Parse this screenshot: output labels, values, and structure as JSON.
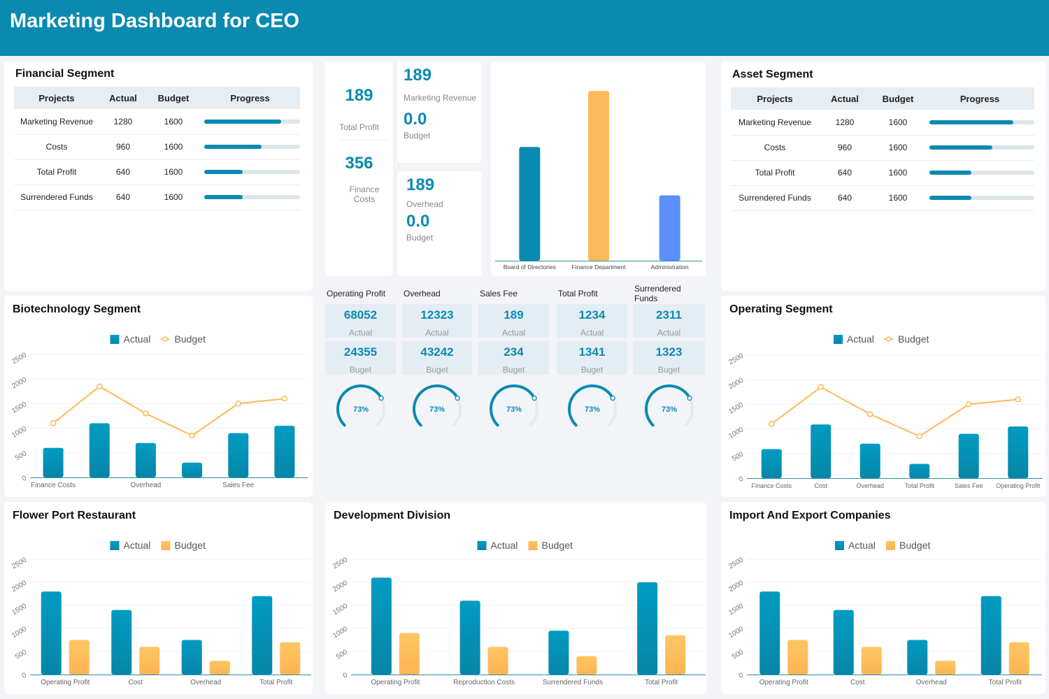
{
  "header": {
    "title": "Marketing Dashboard for CEO"
  },
  "colors": {
    "accent": "#0a8ab1",
    "budget": "#fdb85a",
    "admin": "#5b8ff9",
    "track": "#e1ecf2"
  },
  "financial": {
    "title": "Financial Segment",
    "columns": [
      "Projects",
      "Actual",
      "Budget",
      "Progress"
    ],
    "rows": [
      {
        "project": "Marketing Revenue",
        "actual": "1280",
        "budget": "1600",
        "progress": 80
      },
      {
        "project": "Costs",
        "actual": "960",
        "budget": "1600",
        "progress": 60
      },
      {
        "project": "Total Profit",
        "actual": "640",
        "budget": "1600",
        "progress": 40
      },
      {
        "project": "Surrendered Funds",
        "actual": "640",
        "budget": "1600",
        "progress": 40
      }
    ]
  },
  "asset": {
    "title": "Asset Segment",
    "columns": [
      "Projects",
      "Actual",
      "Budget",
      "Progress"
    ],
    "rows": [
      {
        "project": "Marketing Revenue",
        "actual": "1280",
        "budget": "1600",
        "progress": 80
      },
      {
        "project": "Costs",
        "actual": "960",
        "budget": "1600",
        "progress": 60
      },
      {
        "project": "Total Profit",
        "actual": "640",
        "budget": "1600",
        "progress": 40
      },
      {
        "project": "Surrendered Funds",
        "actual": "640",
        "budget": "1600",
        "progress": 40
      }
    ]
  },
  "kpi_left": {
    "v1": "189",
    "l1": "Total Profit",
    "v2": "356",
    "l2": "Finance Costs"
  },
  "kpi_mid_top": {
    "v1": "189",
    "l1": "Marketing Revenue",
    "v2": "0.0",
    "l2": "Budget"
  },
  "kpi_mid_bottom": {
    "v1": "189",
    "l1": "Overhead",
    "v2": "0.0",
    "l2": "Budget"
  },
  "metrics": [
    {
      "label": "Operating Profit",
      "actual": "68052",
      "actual_label": "Actual",
      "budget": "24355",
      "budget_label": "Buget",
      "gauge": "73%",
      "gauge_value": 73
    },
    {
      "label": "Overhead",
      "actual": "12323",
      "actual_label": "Actual",
      "budget": "43242",
      "budget_label": "Buget",
      "gauge": "73%",
      "gauge_value": 73
    },
    {
      "label": "Sales Fee",
      "actual": "189",
      "actual_label": "Actual",
      "budget": "234",
      "budget_label": "Buget",
      "gauge": "73%",
      "gauge_value": 73
    },
    {
      "label": "Total Profit",
      "actual": "1234",
      "actual_label": "Actual",
      "budget": "1341",
      "budget_label": "Buget",
      "gauge": "73%",
      "gauge_value": 73
    },
    {
      "label": "Surrendered Funds",
      "actual": "2311",
      "actual_label": "Actual",
      "budget": "1323",
      "budget_label": "Buget",
      "gauge": "73%",
      "gauge_value": 73
    }
  ],
  "chart_data": [
    {
      "id": "dept",
      "type": "bar",
      "categories": [
        "Board of Directories",
        "Finance Department",
        "Administration"
      ],
      "values": [
        670,
        1000,
        385
      ],
      "colors": [
        "#0a8ab1",
        "#fdb85a",
        "#5b8ff9"
      ],
      "ylim": [
        0,
        1050
      ],
      "grid": false
    },
    {
      "id": "biotech",
      "title": "Biotechnology Segment",
      "type": "bar+line",
      "categories": [
        "Finance Costs",
        "",
        "Overhead",
        "",
        "Sales Fee",
        ""
      ],
      "series": [
        {
          "name": "Actual",
          "type": "bar",
          "values": [
            600,
            1100,
            700,
            300,
            900,
            1050
          ]
        },
        {
          "name": "Budget",
          "type": "line",
          "values": [
            1100,
            1850,
            1300,
            850,
            1500,
            1600
          ]
        }
      ],
      "ylim": [
        0,
        2500
      ],
      "yticks": [
        "0",
        "500",
        "1000",
        "1500",
        "2000",
        "2500"
      ],
      "legend": "top-center",
      "grid": true
    },
    {
      "id": "operating",
      "title": "Operating Segment",
      "type": "bar+line",
      "categories": [
        "Finance Costs",
        "Cost",
        "Overhead",
        "Total Profit",
        "Sales Fee",
        "Operating Profit"
      ],
      "series": [
        {
          "name": "Actual",
          "type": "bar",
          "values": [
            590,
            1090,
            700,
            290,
            900,
            1050
          ]
        },
        {
          "name": "Budget",
          "type": "line",
          "values": [
            1100,
            1850,
            1300,
            850,
            1500,
            1600
          ]
        }
      ],
      "ylim": [
        0,
        2500
      ],
      "yticks": [
        "0",
        "500",
        "1000",
        "1500",
        "2000",
        "2500"
      ],
      "legend": "top-center",
      "grid": true
    },
    {
      "id": "flower",
      "title": "Flower Port Restaurant",
      "type": "bar",
      "categories": [
        "Operating Profit",
        "Cost",
        "Overhead",
        "Total Profit"
      ],
      "series": [
        {
          "name": "Actual",
          "type": "bar",
          "values": [
            1800,
            1400,
            750,
            1700
          ]
        },
        {
          "name": "Budget",
          "type": "bar",
          "values": [
            750,
            600,
            300,
            700
          ]
        }
      ],
      "ylim": [
        0,
        2500
      ],
      "yticks": [
        "0",
        "500",
        "1000",
        "1500",
        "2000",
        "2500"
      ],
      "legend": "top-center",
      "grid": true
    },
    {
      "id": "development",
      "title": "Development Division",
      "type": "bar",
      "categories": [
        "Operating Profit",
        "Reproduction Costs",
        "Surrendered Funds",
        "Total Profit"
      ],
      "series": [
        {
          "name": "Actual",
          "type": "bar",
          "values": [
            2100,
            1600,
            950,
            2000
          ]
        },
        {
          "name": "Budget",
          "type": "bar",
          "values": [
            900,
            600,
            400,
            850
          ]
        }
      ],
      "ylim": [
        0,
        2500
      ],
      "yticks": [
        "0",
        "500",
        "1000",
        "1500",
        "2000",
        "2500"
      ],
      "legend": "top-center",
      "grid": true
    },
    {
      "id": "import",
      "title": "Import And Export Companies",
      "type": "bar",
      "categories": [
        "Operating Profit",
        "Cost",
        "Overhead",
        "Total Profit"
      ],
      "series": [
        {
          "name": "Actual",
          "type": "bar",
          "values": [
            1800,
            1400,
            750,
            1700
          ]
        },
        {
          "name": "Budget",
          "type": "bar",
          "values": [
            750,
            600,
            300,
            700
          ]
        }
      ],
      "ylim": [
        0,
        2500
      ],
      "yticks": [
        "0",
        "500",
        "1000",
        "1500",
        "2000",
        "2500"
      ],
      "legend": "top-center",
      "grid": true
    }
  ]
}
